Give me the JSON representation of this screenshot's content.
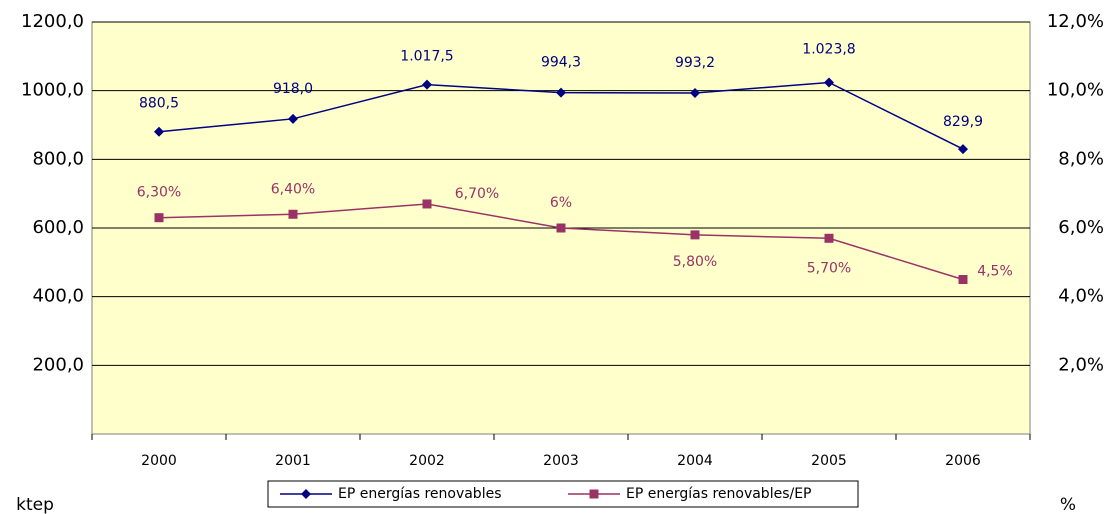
{
  "chart_data": {
    "type": "line",
    "categories": [
      "2000",
      "2001",
      "2002",
      "2003",
      "2004",
      "2005",
      "2006"
    ],
    "series": [
      {
        "name": "EP energías renovables",
        "color": "#000080",
        "marker": "diamond",
        "values": [
          880.5,
          918.0,
          1017.5,
          994.3,
          993.2,
          1023.8,
          829.9
        ],
        "value_labels": [
          "880,5",
          "918,0",
          "1.017,5",
          "994,3",
          "993,2",
          "1.023,8",
          "829,9"
        ]
      },
      {
        "name": "EP energías renovables/EP",
        "color": "#993366",
        "marker": "square",
        "axis": "y2",
        "values": [
          6.3,
          6.4,
          6.7,
          6,
          5.8,
          5.7,
          4.5
        ],
        "value_labels": [
          "6,30%",
          "6,40%",
          "6,70%",
          "6%",
          "5,80%",
          "5,70%",
          "4,5%"
        ]
      }
    ],
    "ylim": [
      0,
      1200
    ],
    "yticks": [
      {
        "value": 200,
        "label": "200,0"
      },
      {
        "value": 400,
        "label": "400,0"
      },
      {
        "value": 600,
        "label": "600,0"
      },
      {
        "value": 800,
        "label": "800,0"
      },
      {
        "value": 1000,
        "label": "1000,0"
      },
      {
        "value": 1200,
        "label": "1200,0"
      }
    ],
    "y2lim": [
      0,
      12
    ],
    "y2ticks": [
      {
        "value": 2,
        "label": "2,0%"
      },
      {
        "value": 4,
        "label": "4,0%"
      },
      {
        "value": 6,
        "label": "6,0%"
      },
      {
        "value": 8,
        "label": "8,0%"
      },
      {
        "value": 10,
        "label": "10,0%"
      },
      {
        "value": 12,
        "label": "12,0%"
      }
    ],
    "y_label": "ktep",
    "y2_label": "%",
    "grid": true,
    "plot_background": "#ffffcc",
    "legend": "bottom"
  }
}
